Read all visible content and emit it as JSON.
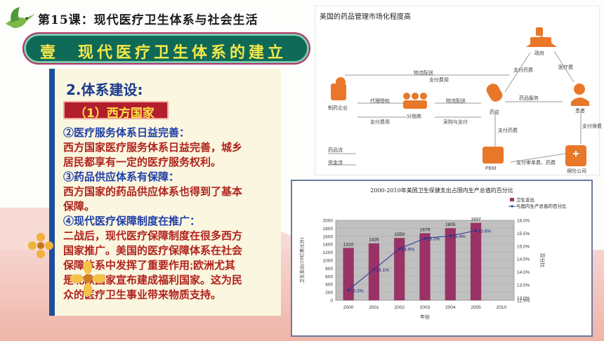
{
  "slide": {
    "lesson_title": "第15课：现代医疗卫生体系与社会生活",
    "banner": "壹　现代医疗卫生体系的建立",
    "section_title": "2.体系建设:",
    "tag": "（1）西方国家",
    "lines": [
      {
        "text": "②医疗服务体系日益完善：",
        "style": "blue"
      },
      {
        "text": "西方国家医疗服务体系日益完善，城乡",
        "style": "red"
      },
      {
        "text": "居民都享有一定的医疗服务权利。",
        "style": "red"
      },
      {
        "text": "③药品供应体系有保障：",
        "style": "blue"
      },
      {
        "text": "西方国家的药品供应体系也得到了基本",
        "style": "red"
      },
      {
        "text": "保障。",
        "style": "red"
      },
      {
        "text": "④现代医疗保障制度在推广：",
        "style": "blue"
      },
      {
        "text": "二战后，现代医疗保障制度在很多西方",
        "style": "red"
      },
      {
        "text": "国家推广。美国的医疗保障体系在社会",
        "style": "red"
      },
      {
        "text": "保障体系中发挥了重要作用;欧洲尤其",
        "style": "red"
      },
      {
        "text": "是北欧国家宣布建成福利国家。这为民",
        "style": "red"
      },
      {
        "text": "众的医疗卫生事业带来物质支持。",
        "style": "red"
      }
    ]
  },
  "flow": {
    "title": "美国的药品管理市场化程度高",
    "labels": {
      "gov": "政府",
      "maker": "制药企业",
      "distributor": "分销商",
      "pharmacy": "药店",
      "patient": "患者",
      "pbm": "PBM",
      "insurer": "保险公司",
      "logistics_top": "物流配送",
      "pay_fee": "支付费用",
      "agent": "代理授权",
      "pay_fee2": "支付费用",
      "logistics_mid": "物流配送",
      "purchase": "采购与支付",
      "drug_service": "药品服务",
      "pay_drug": "支付药费",
      "med_care": "医疗费",
      "pay_premium": "支付保费",
      "pay_drug2": "支付药费",
      "audit": "支付审单费、药费",
      "drug_flow": "药品流",
      "fund_flow": "资金流"
    },
    "colors": {
      "orange": "#e8772a",
      "arrow": "#9a9a9a"
    }
  },
  "chart_data": {
    "type": "bar",
    "title": "2000-2010年美国卫生保健支出占国内生产总值的百分比",
    "categories": [
      "2000",
      "2001",
      "2002",
      "2003",
      "2004",
      "2005",
      "2010"
    ],
    "series": [
      {
        "name": "卫生支出",
        "type": "bar",
        "x": [
          "2000",
          "2001",
          "2002",
          "2003",
          "2004",
          "2005"
        ],
        "values": [
          1310,
          1426,
          1559,
          1679,
          1805,
          1937
        ],
        "color": "#993366"
      },
      {
        "name": "与国内生产总值的百分比",
        "type": "line",
        "x": [
          "2000",
          "2001",
          "2002",
          "2003",
          "2004",
          "2005"
        ],
        "values": [
          13.3,
          14.1,
          14.9,
          15.3,
          15.4,
          15.6
        ],
        "labels": [
          "13.3%",
          "14.1%",
          "14.9%",
          "15.3%",
          "15.4%",
          "15.6%"
        ],
        "color": "#283593"
      }
    ],
    "xlabel": "年份",
    "ylabel": "卫生支出(10亿美元计)",
    "ylabel_right": "百分比",
    "ylim": [
      0,
      2000
    ],
    "y_ticks": [
      "0",
      "200",
      "400",
      "600",
      "800",
      "1000",
      "1200",
      "1400",
      "1600",
      "1800",
      "2000"
    ],
    "ylim_right": [
      12.9,
      16.0
    ],
    "y_right_ticks": [
      "12.9%",
      "13.0%",
      "13.5%",
      "14.0%",
      "14.5%",
      "15.0%",
      "15.5%",
      "16.0%"
    ],
    "legend_position": "top-right",
    "plot_background": "#c0c0c0"
  }
}
